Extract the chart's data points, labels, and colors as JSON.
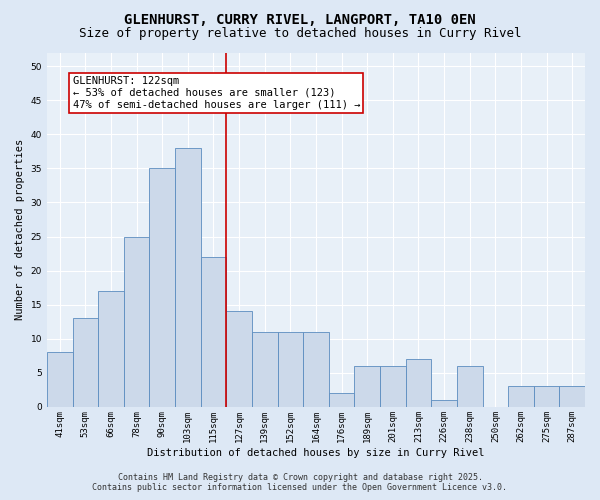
{
  "title": "GLENHURST, CURRY RIVEL, LANGPORT, TA10 0EN",
  "subtitle": "Size of property relative to detached houses in Curry Rivel",
  "xlabel": "Distribution of detached houses by size in Curry Rivel",
  "ylabel": "Number of detached properties",
  "categories": [
    "41sqm",
    "53sqm",
    "66sqm",
    "78sqm",
    "90sqm",
    "103sqm",
    "115sqm",
    "127sqm",
    "139sqm",
    "152sqm",
    "164sqm",
    "176sqm",
    "189sqm",
    "201sqm",
    "213sqm",
    "226sqm",
    "238sqm",
    "250sqm",
    "262sqm",
    "275sqm",
    "287sqm"
  ],
  "values": [
    8,
    13,
    17,
    25,
    35,
    38,
    22,
    14,
    11,
    11,
    11,
    2,
    6,
    6,
    7,
    1,
    6,
    0,
    3,
    3,
    3
  ],
  "bar_color": "#ccd9ea",
  "bar_edge_color": "#5b8cbf",
  "vline_color": "#cc0000",
  "vline_x_index": 6,
  "annotation_title": "GLENHURST: 122sqm",
  "annotation_line1": "← 53% of detached houses are smaller (123)",
  "annotation_line2": "47% of semi-detached houses are larger (111) →",
  "annotation_box_color": "#ffffff",
  "annotation_border_color": "#cc0000",
  "ylim": [
    0,
    52
  ],
  "yticks": [
    0,
    5,
    10,
    15,
    20,
    25,
    30,
    35,
    40,
    45,
    50
  ],
  "bg_color": "#dde8f5",
  "plot_bg_color": "#e8f0f8",
  "footer1": "Contains HM Land Registry data © Crown copyright and database right 2025.",
  "footer2": "Contains public sector information licensed under the Open Government Licence v3.0.",
  "title_fontsize": 10,
  "subtitle_fontsize": 9,
  "label_fontsize": 7.5,
  "tick_fontsize": 6.5,
  "annotation_fontsize": 7.5,
  "footer_fontsize": 6
}
